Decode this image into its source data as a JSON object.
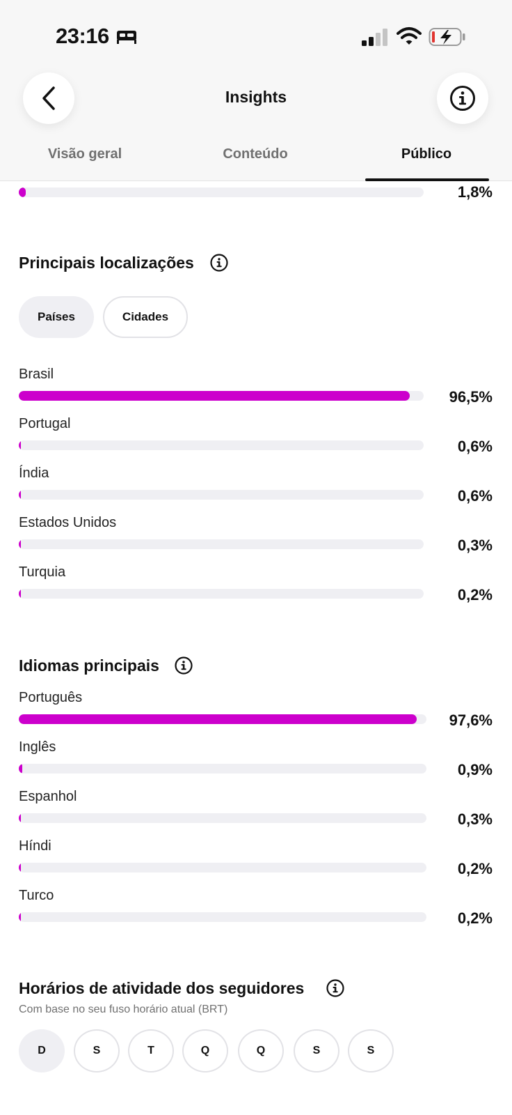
{
  "status_bar": {
    "time": "23:16"
  },
  "header": {
    "title": "Insights"
  },
  "tabs": [
    {
      "label": "Visão geral"
    },
    {
      "label": "Conteúdo"
    },
    {
      "label": "Público",
      "active": true
    }
  ],
  "top_partial_row": {
    "value": "1,8%",
    "fraction": 0.018
  },
  "locations": {
    "title": "Principais localizações",
    "filters": [
      {
        "label": "Países",
        "active": true
      },
      {
        "label": "Cidades",
        "active": false
      }
    ],
    "rows": [
      {
        "label": "Brasil",
        "value": "96,5%",
        "fraction": 0.965
      },
      {
        "label": "Portugal",
        "value": "0,6%",
        "fraction": 0.006
      },
      {
        "label": "Índia",
        "value": "0,6%",
        "fraction": 0.006
      },
      {
        "label": "Estados Unidos",
        "value": "0,3%",
        "fraction": 0.003
      },
      {
        "label": "Turquia",
        "value": "0,2%",
        "fraction": 0.002
      }
    ]
  },
  "languages": {
    "title": "Idiomas principais",
    "rows": [
      {
        "label": "Português",
        "value": "97,6%",
        "fraction": 0.976
      },
      {
        "label": "Inglês",
        "value": "0,9%",
        "fraction": 0.009
      },
      {
        "label": "Espanhol",
        "value": "0,3%",
        "fraction": 0.003
      },
      {
        "label": "Híndi",
        "value": "0,2%",
        "fraction": 0.002
      },
      {
        "label": "Turco",
        "value": "0,2%",
        "fraction": 0.002
      }
    ]
  },
  "activity": {
    "title": "Horários de atividade dos seguidores",
    "subtitle": "Com base no seu fuso horário atual (BRT)",
    "days": [
      {
        "label": "D",
        "active": true
      },
      {
        "label": "S",
        "active": false
      },
      {
        "label": "T",
        "active": false
      },
      {
        "label": "Q",
        "active": false
      },
      {
        "label": "Q",
        "active": false
      },
      {
        "label": "S",
        "active": false
      },
      {
        "label": "S",
        "active": false
      }
    ]
  },
  "colors": {
    "bar_fill": "#cc00cc",
    "bar_track": "#efeff3",
    "header_bg": "#f7f7f7"
  }
}
